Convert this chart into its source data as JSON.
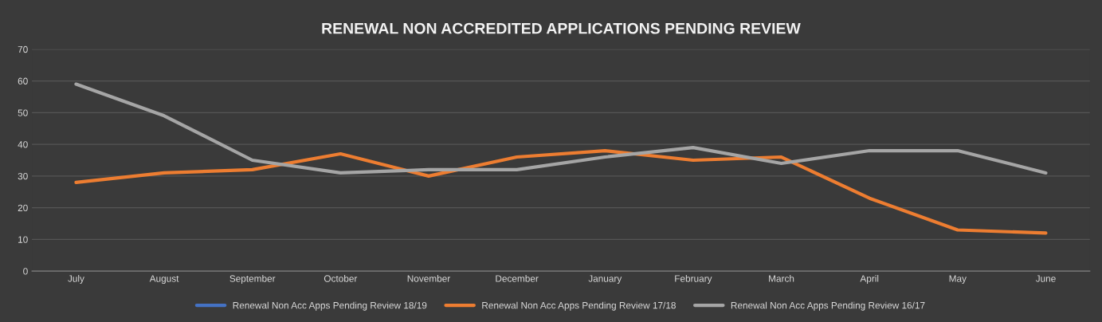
{
  "chart_data": {
    "type": "line",
    "title": "RENEWAL NON ACCREDITED APPLICATIONS PENDING REVIEW",
    "categories": [
      "July",
      "August",
      "September",
      "October",
      "November",
      "December",
      "January",
      "February",
      "March",
      "April",
      "May",
      "June"
    ],
    "series": [
      {
        "name": "Renewal Non Acc Apps Pending Review 18/19",
        "color": "#4472c4",
        "values": [
          null,
          null,
          null,
          null,
          null,
          null,
          null,
          null,
          null,
          null,
          null,
          null
        ]
      },
      {
        "name": "Renewal Non Acc Apps Pending Review 17/18",
        "color": "#ed7d31",
        "values": [
          28,
          31,
          32,
          37,
          30,
          36,
          38,
          35,
          36,
          23,
          13,
          12
        ]
      },
      {
        "name": "Renewal Non Acc Apps Pending Review 16/17",
        "color": "#a5a5a5",
        "values": [
          59,
          49,
          35,
          31,
          32,
          32,
          36,
          39,
          34,
          38,
          38,
          31
        ]
      }
    ],
    "ylim": [
      0,
      70
    ],
    "yticks": [
      0,
      10,
      20,
      30,
      40,
      50,
      60,
      70
    ],
    "grid": "y",
    "legend": "bottom",
    "marker": "none",
    "line_style": "solid"
  }
}
